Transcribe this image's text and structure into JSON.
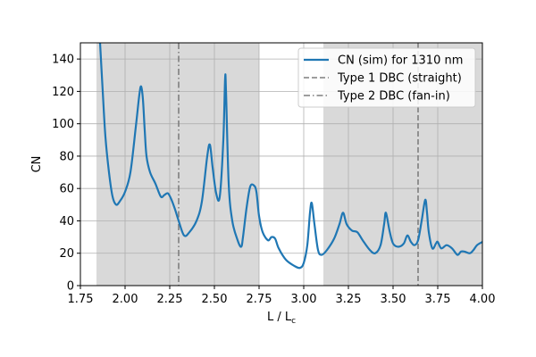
{
  "chart_data": {
    "type": "line",
    "xlabel": "L / L",
    "xlabel_sub": "c",
    "ylabel": "CN",
    "xlim": [
      1.75,
      4.0
    ],
    "ylim": [
      0,
      150
    ],
    "xticks": [
      1.75,
      2.0,
      2.25,
      2.5,
      2.75,
      3.0,
      3.25,
      3.5,
      3.75,
      4.0
    ],
    "xtick_labels": [
      "1.75",
      "2.00",
      "2.25",
      "2.50",
      "2.75",
      "3.00",
      "3.25",
      "3.50",
      "3.75",
      "4.00"
    ],
    "yticks": [
      0,
      20,
      40,
      60,
      80,
      100,
      120,
      140
    ],
    "ytick_labels": [
      "0",
      "20",
      "40",
      "60",
      "80",
      "100",
      "120",
      "140"
    ],
    "grid": true,
    "legend_position": "top-right",
    "colors": {
      "series": "#1f77b4",
      "shade": "#d9d9d9",
      "grid": "#b0b0b0",
      "vline": "#7f7f7f"
    },
    "shaded_regions": [
      [
        1.84,
        2.75
      ],
      [
        3.11,
        4.0
      ]
    ],
    "vlines": [
      {
        "x": 2.3,
        "style": "dashdot",
        "legend": "Type 2 DBC (fan-in)"
      },
      {
        "x": 3.64,
        "style": "dashed",
        "legend": "Type 1 DBC (straight)"
      }
    ],
    "legend": [
      {
        "label": "CN (sim) for 1310 nm",
        "style": "solid"
      },
      {
        "label": "Type 1 DBC (straight)",
        "style": "dashed"
      },
      {
        "label": "Type 2 DBC (fan-in)",
        "style": "dashdot"
      }
    ],
    "series": [
      {
        "name": "CN (sim) for 1310 nm",
        "x": [
          1.86,
          1.875,
          1.89,
          1.91,
          1.93,
          1.95,
          1.97,
          2.0,
          2.03,
          2.06,
          2.08,
          2.09,
          2.1,
          2.11,
          2.12,
          2.14,
          2.17,
          2.2,
          2.22,
          2.24,
          2.26,
          2.28,
          2.3,
          2.33,
          2.36,
          2.4,
          2.43,
          2.46,
          2.475,
          2.49,
          2.51,
          2.53,
          2.55,
          2.56,
          2.565,
          2.58,
          2.6,
          2.63,
          2.65,
          2.66,
          2.68,
          2.7,
          2.72,
          2.735,
          2.75,
          2.77,
          2.8,
          2.82,
          2.84,
          2.86,
          2.9,
          2.95,
          2.98,
          3.0,
          3.02,
          3.035,
          3.045,
          3.06,
          3.08,
          3.1,
          3.13,
          3.17,
          3.2,
          3.22,
          3.24,
          3.27,
          3.3,
          3.33,
          3.37,
          3.4,
          3.43,
          3.45,
          3.46,
          3.48,
          3.5,
          3.53,
          3.56,
          3.58,
          3.6,
          3.62,
          3.64,
          3.66,
          3.68,
          3.69,
          3.7,
          3.72,
          3.74,
          3.75,
          3.77,
          3.8,
          3.83,
          3.86,
          3.88,
          3.9,
          3.93,
          3.95,
          3.97,
          4.0
        ],
        "values": [
          150,
          120,
          92,
          70,
          55,
          50,
          52,
          58,
          70,
          98,
          118,
          123,
          115,
          96,
          80,
          70,
          63,
          55,
          56,
          57,
          53,
          47,
          40,
          31,
          33,
          40,
          52,
          80,
          87,
          73,
          57,
          55,
          90,
          128,
          120,
          63,
          40,
          28,
          24,
          30,
          48,
          61,
          62,
          58,
          43,
          33,
          28,
          30,
          29,
          23,
          16,
          12,
          11,
          14,
          25,
          45,
          51,
          38,
          22,
          19,
          22,
          29,
          38,
          45,
          38,
          34,
          33,
          28,
          22,
          20,
          25,
          38,
          45,
          34,
          26,
          24,
          26,
          31,
          27,
          25,
          28,
          40,
          53,
          45,
          33,
          23,
          26,
          27,
          23,
          25,
          23,
          19,
          21,
          21,
          20,
          22,
          25,
          27
        ]
      }
    ]
  }
}
